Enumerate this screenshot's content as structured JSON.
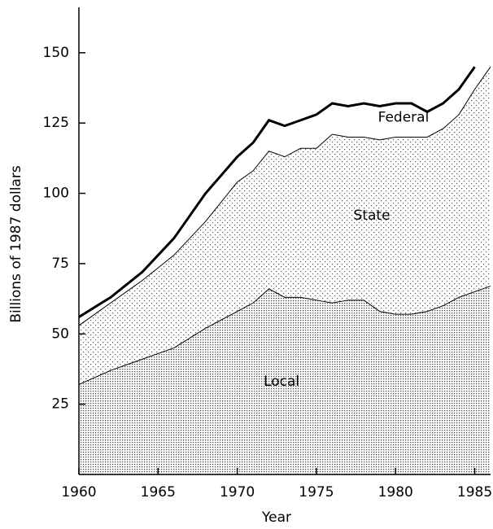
{
  "chart_data": {
    "type": "stacked-area",
    "x": [
      1960,
      1961,
      1962,
      1963,
      1964,
      1965,
      1966,
      1967,
      1968,
      1969,
      1970,
      1971,
      1972,
      1973,
      1974,
      1975,
      1976,
      1977,
      1978,
      1979,
      1980,
      1981,
      1982,
      1983,
      1984,
      1985,
      1986
    ],
    "series": [
      {
        "name": "Local",
        "color": "#555555",
        "values": [
          32,
          34.5,
          37,
          39,
          41,
          43,
          45,
          48.5,
          52,
          55,
          58,
          61,
          66,
          63,
          63,
          62,
          61,
          62,
          62,
          58,
          57,
          57,
          58,
          60,
          63,
          65,
          67
        ]
      },
      {
        "name": "State",
        "color": "#999999",
        "values": [
          21,
          22.5,
          24,
          26,
          28,
          30.5,
          33,
          35.5,
          38,
          42,
          46,
          47,
          49,
          50,
          53,
          54,
          60,
          58,
          58,
          61,
          63,
          63,
          62,
          63,
          65,
          72,
          78
        ]
      },
      {
        "name": "Federal",
        "color": "#ffffff",
        "values": [
          3,
          2.5,
          2,
          2.5,
          3,
          4.5,
          6,
          8,
          10,
          9.5,
          9,
          10,
          11,
          11,
          10,
          12,
          11,
          11,
          12,
          12,
          12,
          12,
          9,
          9,
          9,
          8,
          null
        ]
      }
    ],
    "label_positions": null,
    "xlabel": "Year",
    "ylabel": "Billions of 1987 dollars",
    "xlim": [
      1960,
      1986
    ],
    "xticks": [
      1960,
      1965,
      1970,
      1975,
      1980,
      1985
    ],
    "ylim": [
      0,
      165
    ],
    "yticks": [
      25,
      50,
      75,
      100,
      125,
      150
    ]
  }
}
